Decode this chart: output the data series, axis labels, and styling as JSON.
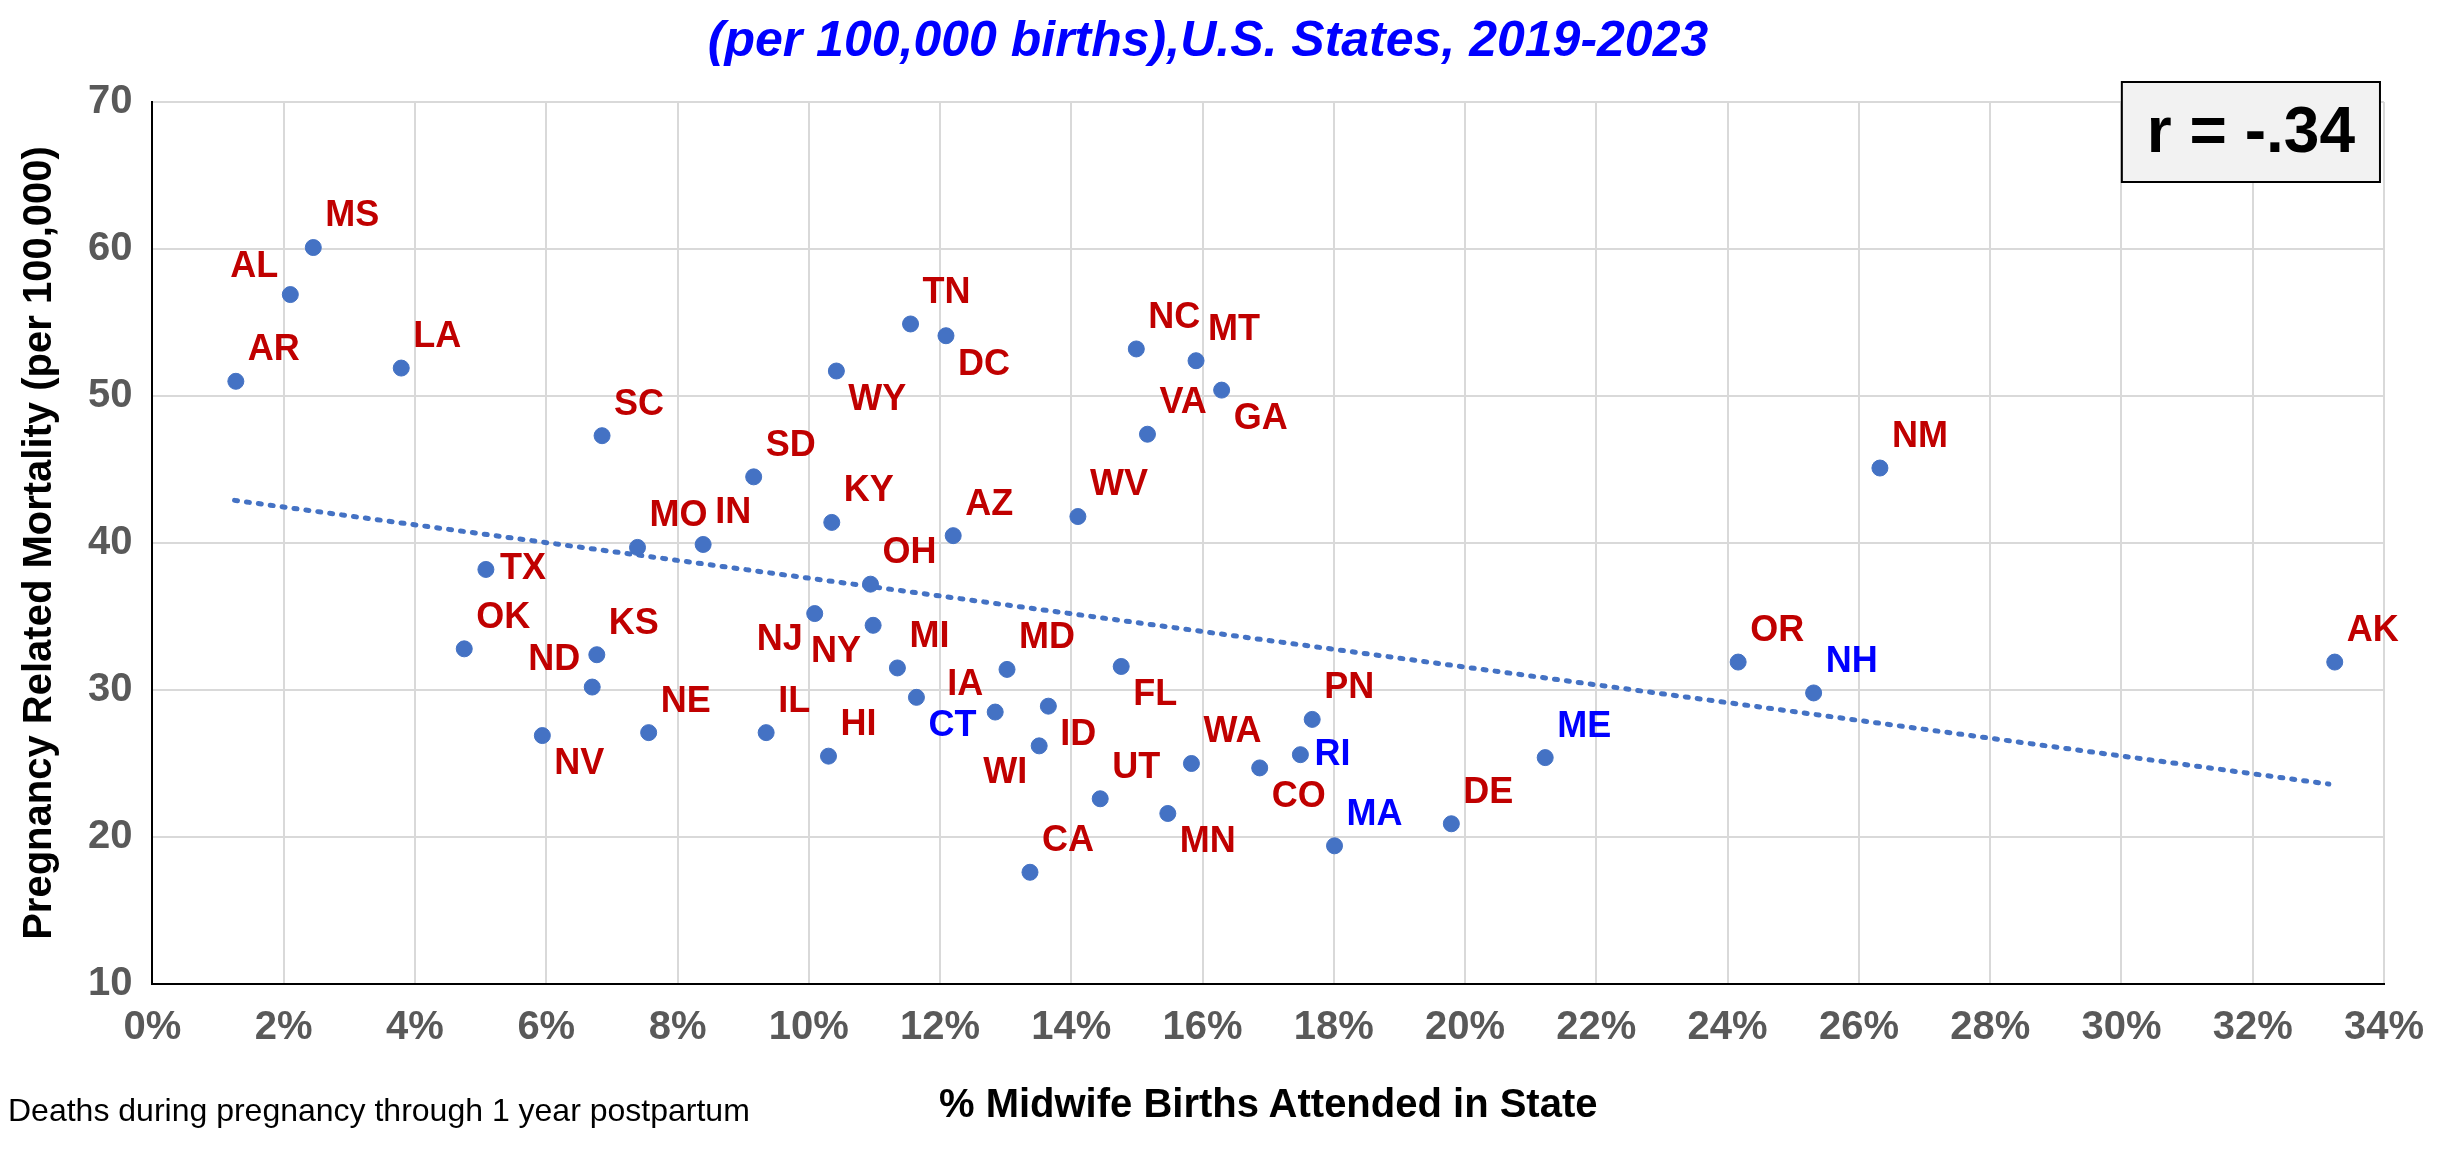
{
  "chart_data": {
    "type": "scatter",
    "title": "(per 100,000 births),U.S. States, 2019-2023",
    "xlabel": "% Midwife Births Attended in State",
    "ylabel": "Pregnancy Related Mortality (per 100,000)",
    "xlim": [
      0,
      34
    ],
    "xticks": [
      {
        "value": 0,
        "label": "0%"
      },
      {
        "value": 2,
        "label": "2%"
      },
      {
        "value": 4,
        "label": "4%"
      },
      {
        "value": 6,
        "label": "6%"
      },
      {
        "value": 8,
        "label": "8%"
      },
      {
        "value": 10,
        "label": "10%"
      },
      {
        "value": 12,
        "label": "12%"
      },
      {
        "value": 14,
        "label": "14%"
      },
      {
        "value": 16,
        "label": "16%"
      },
      {
        "value": 18,
        "label": "18%"
      },
      {
        "value": 20,
        "label": "20%"
      },
      {
        "value": 22,
        "label": "22%"
      },
      {
        "value": 24,
        "label": "24%"
      },
      {
        "value": 26,
        "label": "26%"
      },
      {
        "value": 28,
        "label": "28%"
      },
      {
        "value": 30,
        "label": "30%"
      },
      {
        "value": 32,
        "label": "32%"
      },
      {
        "value": 34,
        "label": "34%"
      }
    ],
    "ylim": [
      10,
      70
    ],
    "yticks": [
      10,
      20,
      30,
      40,
      50,
      60,
      70
    ],
    "grid": true,
    "legend": false,
    "marker": "circle",
    "series": [
      {
        "color": "#4472c4",
        "x": [
          1.27,
          2.1,
          2.45,
          3.79,
          6.85,
          9.16,
          7.39,
          8.39,
          10.35,
          11.55,
          12.09,
          10.42,
          12.2,
          14.1,
          14.99,
          15.16,
          15.9,
          16.29,
          26.32,
          4.75,
          6.77,
          6.7,
          5.94,
          7.56,
          9.35,
          10.3,
          10.09,
          10.94,
          10.98,
          11.35,
          13.02,
          12.84,
          13.65,
          13.51,
          14.44,
          13.37,
          14.76,
          15.47,
          5.08,
          15.83,
          16.87,
          17.67,
          19.79,
          24.16,
          33.25
        ],
        "values": [
          51.0,
          56.9,
          60.1,
          51.9,
          47.3,
          44.5,
          39.7,
          39.9,
          41.4,
          54.9,
          54.1,
          51.7,
          40.5,
          41.8,
          53.2,
          47.4,
          52.4,
          50.4,
          45.1,
          32.8,
          32.4,
          30.2,
          26.9,
          27.1,
          27.1,
          25.5,
          35.2,
          37.2,
          34.4,
          31.5,
          31.4,
          28.5,
          28.9,
          26.2,
          22.6,
          17.6,
          31.6,
          21.6,
          38.2,
          25.0,
          24.7,
          28.0,
          20.9,
          31.9,
          31.9
        ]
      },
      {
        "color": "#4472c4",
        "x": [
          11.64,
          17.49,
          18.01,
          21.22,
          25.31
        ],
        "values": [
          29.5,
          25.6,
          19.4,
          25.4,
          29.8
        ]
      },
      {
        "type": "line",
        "color": "#4472c4",
        "line_style": "dotted",
        "marker": "none",
        "x": [
          1.25,
          33.16
        ],
        "values": [
          42.9,
          23.6
        ]
      }
    ],
    "annotations": [
      "r = -.34",
      "Deaths during pregnancy through 1 year postpartum",
      {
        "text": "AR",
        "x": 1.27,
        "y": 51.0
      },
      {
        "text": "AL",
        "x": 2.1,
        "y": 56.9
      },
      {
        "text": "MS",
        "x": 2.45,
        "y": 60.1
      },
      {
        "text": "LA",
        "x": 3.79,
        "y": 51.9
      },
      {
        "text": "SC",
        "x": 6.85,
        "y": 47.3
      },
      {
        "text": "SD",
        "x": 9.16,
        "y": 44.5
      },
      {
        "text": "MO",
        "x": 7.39,
        "y": 39.7
      },
      {
        "text": "IN",
        "x": 8.39,
        "y": 39.9
      },
      {
        "text": "KY",
        "x": 10.35,
        "y": 41.4
      },
      {
        "text": "TN",
        "x": 11.55,
        "y": 54.9
      },
      {
        "text": "DC",
        "x": 12.09,
        "y": 54.1
      },
      {
        "text": "WY",
        "x": 10.42,
        "y": 51.7
      },
      {
        "text": "AZ",
        "x": 12.2,
        "y": 40.5
      },
      {
        "text": "WV",
        "x": 14.1,
        "y": 41.8
      },
      {
        "text": "NC",
        "x": 14.99,
        "y": 53.2
      },
      {
        "text": "VA",
        "x": 15.16,
        "y": 47.4
      },
      {
        "text": "MT",
        "x": 15.9,
        "y": 52.4
      },
      {
        "text": "GA",
        "x": 16.29,
        "y": 50.4
      },
      {
        "text": "NM",
        "x": 26.32,
        "y": 45.1
      },
      {
        "text": "OK",
        "x": 4.75,
        "y": 32.8
      },
      {
        "text": "KS",
        "x": 6.77,
        "y": 32.4
      },
      {
        "text": "ND",
        "x": 6.7,
        "y": 30.2
      },
      {
        "text": "NV",
        "x": 5.94,
        "y": 26.9
      },
      {
        "text": "NE",
        "x": 7.56,
        "y": 27.1
      },
      {
        "text": "IL",
        "x": 9.35,
        "y": 27.1
      },
      {
        "text": "HI",
        "x": 10.3,
        "y": 25.5
      },
      {
        "text": "NJ",
        "x": 10.09,
        "y": 35.2
      },
      {
        "text": "OH",
        "x": 10.94,
        "y": 37.2
      },
      {
        "text": "NY",
        "x": 10.98,
        "y": 34.4
      },
      {
        "text": "MI",
        "x": 11.35,
        "y": 31.5
      },
      {
        "text": "CT",
        "x": 11.64,
        "y": 29.5
      },
      {
        "text": "MD",
        "x": 13.02,
        "y": 31.4
      },
      {
        "text": "IA",
        "x": 12.84,
        "y": 28.5
      },
      {
        "text": "ID",
        "x": 13.65,
        "y": 28.9
      },
      {
        "text": "WI",
        "x": 13.51,
        "y": 26.2
      },
      {
        "text": "UT",
        "x": 14.44,
        "y": 22.6
      },
      {
        "text": "CA",
        "x": 13.37,
        "y": 17.6
      },
      {
        "text": "FL",
        "x": 14.76,
        "y": 31.6
      },
      {
        "text": "MN",
        "x": 15.47,
        "y": 21.6
      },
      {
        "text": "TX",
        "x": 5.08,
        "y": 38.2
      },
      {
        "text": "WA",
        "x": 15.83,
        "y": 25.0
      },
      {
        "text": "CO",
        "x": 16.87,
        "y": 24.7
      },
      {
        "text": "RI",
        "x": 17.49,
        "y": 25.6
      },
      {
        "text": "PN",
        "x": 17.67,
        "y": 28.0
      },
      {
        "text": "MA",
        "x": 18.01,
        "y": 19.4
      },
      {
        "text": "DE",
        "x": 19.79,
        "y": 20.9
      },
      {
        "text": "ME",
        "x": 21.22,
        "y": 25.4
      },
      {
        "text": "OR",
        "x": 24.16,
        "y": 31.9
      },
      {
        "text": "NH",
        "x": 25.31,
        "y": 29.8
      },
      {
        "text": "AK",
        "x": 33.25,
        "y": 31.9
      }
    ]
  }
}
